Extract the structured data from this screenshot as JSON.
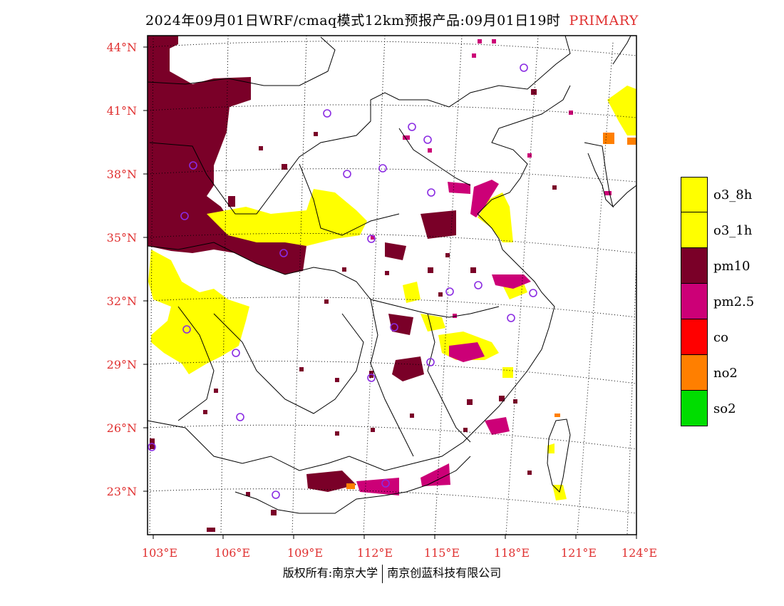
{
  "title": {
    "text": "2024年09月01日WRF/cmaq模式12km预报产品:09月01日19时",
    "tag": "PRIMARY",
    "tag_color": "#e03030"
  },
  "footer": {
    "left": "版权所有:南京大学",
    "right": "南京创蓝科技有限公司"
  },
  "axes": {
    "lat_labels": [
      "44°N",
      "41°N",
      "38°N",
      "35°N",
      "32°N",
      "29°N",
      "26°N",
      "23°N"
    ],
    "lon_labels": [
      "103°E",
      "106°E",
      "109°E",
      "112°E",
      "115°E",
      "118°E",
      "121°E",
      "124°E"
    ],
    "label_color": "#e03030"
  },
  "legend": [
    {
      "label": "o3_8h",
      "color": "#ffff00"
    },
    {
      "label": "o3_1h",
      "color": "#ffff00"
    },
    {
      "label": "pm10",
      "color": "#7a0028"
    },
    {
      "label": "pm2.5",
      "color": "#cc0077"
    },
    {
      "label": "co",
      "color": "#ff0000"
    },
    {
      "label": "no2",
      "color": "#ff7f00"
    },
    {
      "label": "so2",
      "color": "#00dd00"
    }
  ],
  "stations_color": "#8a2be2"
}
